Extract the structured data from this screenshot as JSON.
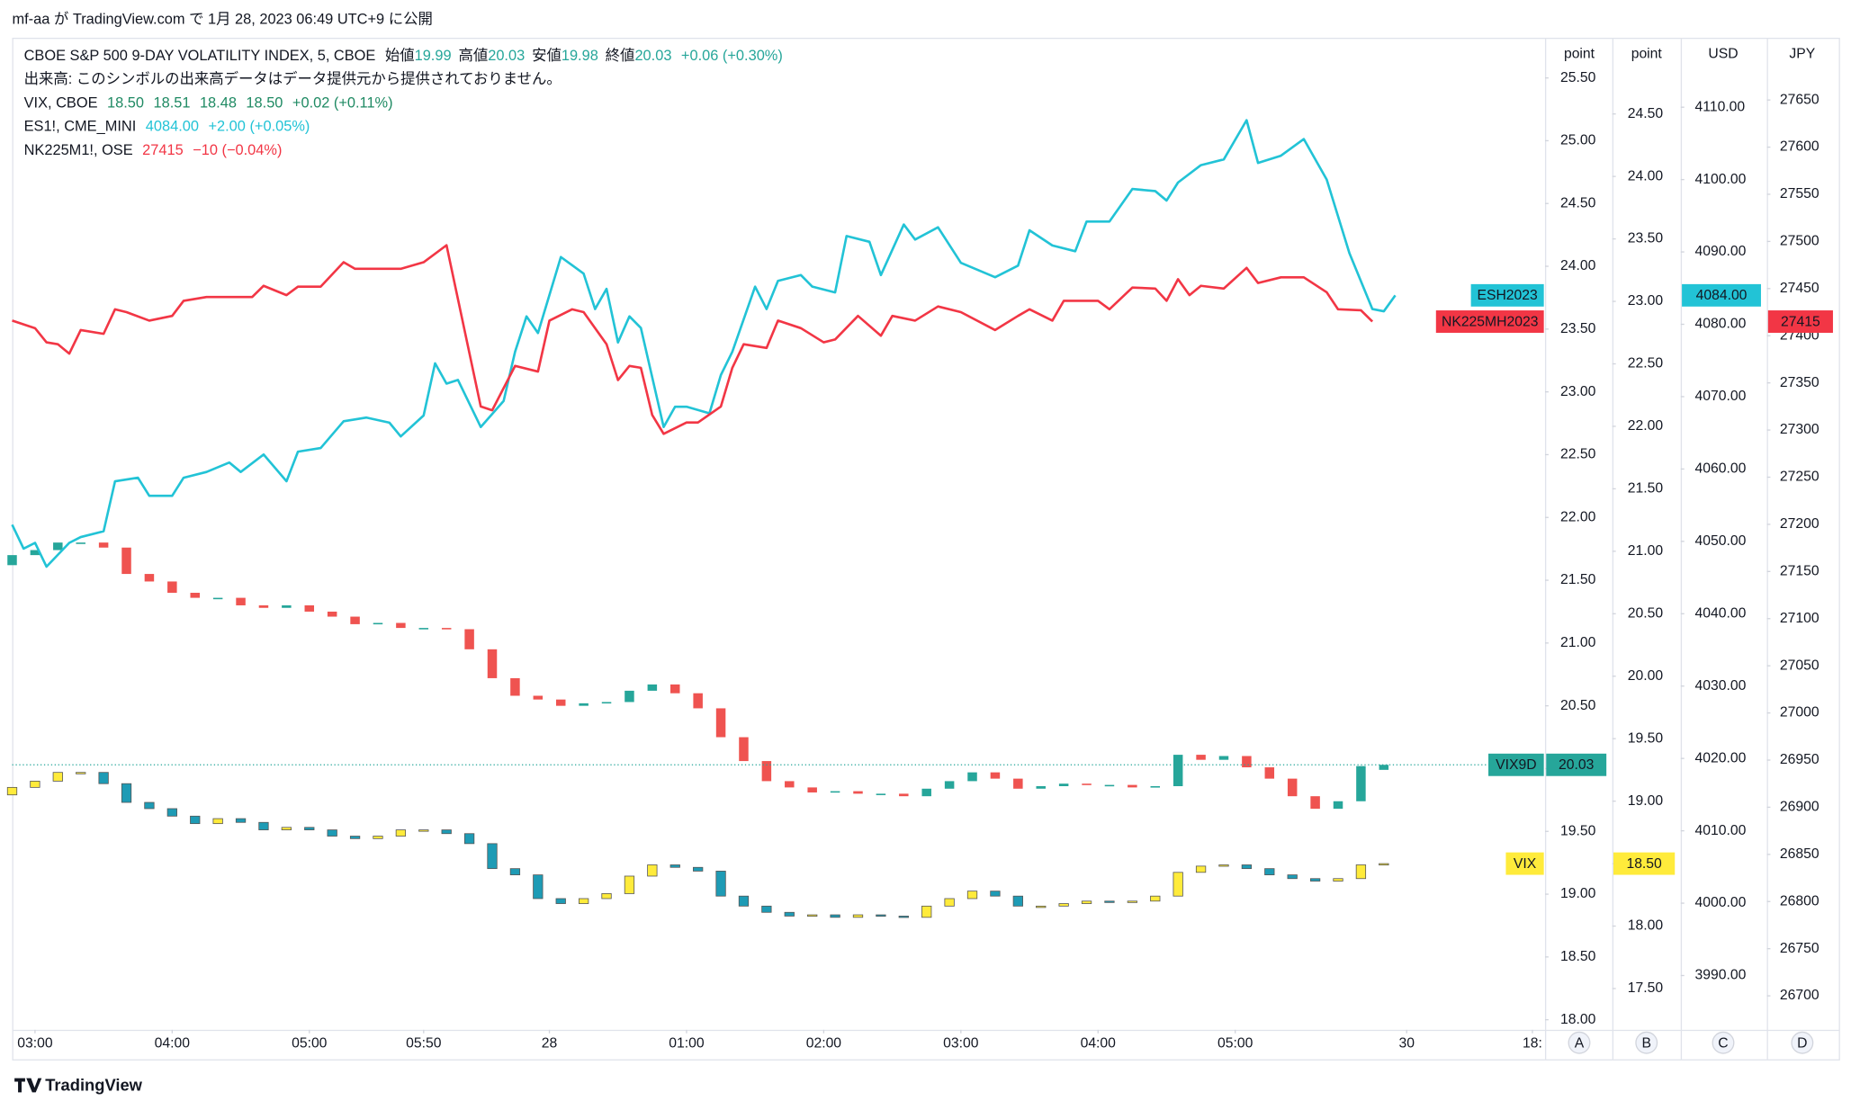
{
  "caption": "mf-aa が TradingView.com で 1月 28, 2023 06:49 UTC+9 に公開",
  "footer": "TradingView",
  "chart_data": {
    "type": "candlestick",
    "legend": [
      {
        "name": "CBOE S&P 500 9-DAY VOLATILITY INDEX, 5, CBOE",
        "labels": [
          "始値",
          "高値",
          "安値",
          "終値"
        ],
        "values": [
          "19.99",
          "20.03",
          "19.98",
          "20.03"
        ],
        "change": "+0.06 (+0.30%)",
        "color": "#26a69a"
      },
      {
        "name": "出来高: このシンボルの出来高データはデータ提供元から提供されておりません。"
      },
      {
        "name": "VIX, CBOE",
        "values": [
          "18.50",
          "18.51",
          "18.48",
          "18.50"
        ],
        "change": "+0.02 (+0.11%)",
        "color": "#1f8a63"
      },
      {
        "name": "ES1!, CME_MINI",
        "values": [
          "4084.00"
        ],
        "change": "+2.00 (+0.05%)",
        "color": "#22c3d6"
      },
      {
        "name": "NK225M1!, OSE",
        "values": [
          "27415"
        ],
        "change": "−10 (−0.04%)",
        "color": "#f23645"
      }
    ],
    "axis_units": [
      "point",
      "point",
      "USD",
      "JPY"
    ],
    "axis_letters": [
      "A",
      "B",
      "C",
      "D"
    ],
    "xlim": [
      0,
      134
    ],
    "xticks": [
      {
        "value": 2,
        "label": "03:00"
      },
      {
        "value": 14,
        "label": "04:00"
      },
      {
        "value": 26,
        "label": "05:00"
      },
      {
        "value": 36,
        "label": "05:50"
      },
      {
        "value": 47,
        "label": "28"
      },
      {
        "value": 59,
        "label": "01:00"
      },
      {
        "value": 71,
        "label": "02:00"
      },
      {
        "value": 83,
        "label": "03:00"
      },
      {
        "value": 95,
        "label": "04:00"
      },
      {
        "value": 107,
        "label": "05:00"
      },
      {
        "value": 122,
        "label": "30"
      },
      {
        "value": 133,
        "label": "18:"
      }
    ],
    "ylim": [
      17.92,
      25.82
    ],
    "yticks": [
      {
        "value": 18,
        "label": "18.00"
      },
      {
        "value": 18.5,
        "label": "18.50"
      },
      {
        "value": 19,
        "label": "19.00"
      },
      {
        "value": 19.5,
        "label": "19.50"
      },
      {
        "value": 20,
        "label": "20.00"
      },
      {
        "value": 20.5,
        "label": "20.50"
      },
      {
        "value": 21,
        "label": "21.00"
      },
      {
        "value": 21.5,
        "label": "21.50"
      },
      {
        "value": 22,
        "label": "22.00"
      },
      {
        "value": 22.5,
        "label": "22.50"
      },
      {
        "value": 23,
        "label": "23.00"
      },
      {
        "value": 23.5,
        "label": "23.50"
      },
      {
        "value": 24,
        "label": "24.00"
      },
      {
        "value": 24.5,
        "label": "24.50"
      },
      {
        "value": 25,
        "label": "25.00"
      },
      {
        "value": 25.5,
        "label": "25.50"
      }
    ],
    "y2lim": [
      17.17,
      25.11
    ],
    "y2ticks": [
      {
        "value": 17.5,
        "label": "17.50"
      },
      {
        "value": 18,
        "label": "18.00"
      },
      {
        "value": 18.5,
        "label": "18.50"
      },
      {
        "value": 19,
        "label": "19.00"
      },
      {
        "value": 19.5,
        "label": "19.50"
      },
      {
        "value": 20,
        "label": "20.00"
      },
      {
        "value": 20.5,
        "label": "20.50"
      },
      {
        "value": 21,
        "label": "21.00"
      },
      {
        "value": 21.5,
        "label": "21.50"
      },
      {
        "value": 22,
        "label": "22.00"
      },
      {
        "value": 22.5,
        "label": "22.50"
      },
      {
        "value": 23,
        "label": "23.00"
      },
      {
        "value": 23.5,
        "label": "23.50"
      },
      {
        "value": 24,
        "label": "24.00"
      },
      {
        "value": 24.5,
        "label": "24.50"
      }
    ],
    "y3lim": [
      3982.5,
      4119.6
    ],
    "y3ticks": [
      {
        "value": 3990,
        "label": "3990.00"
      },
      {
        "value": 4000,
        "label": "4000.00"
      },
      {
        "value": 4010,
        "label": "4010.00"
      },
      {
        "value": 4020,
        "label": "4020.00"
      },
      {
        "value": 4030,
        "label": "4030.00"
      },
      {
        "value": 4040,
        "label": "4040.00"
      },
      {
        "value": 4050,
        "label": "4050.00"
      },
      {
        "value": 4060,
        "label": "4060.00"
      },
      {
        "value": 4070,
        "label": "4070.00"
      },
      {
        "value": 4080,
        "label": "4080.00"
      },
      {
        "value": 4090,
        "label": "4090.00"
      },
      {
        "value": 4100,
        "label": "4100.00"
      },
      {
        "value": 4110,
        "label": "4110.00"
      }
    ],
    "y4lim": [
      26664,
      27716
    ],
    "y4ticks": [
      26700,
      26750,
      26800,
      26850,
      26900,
      26950,
      27000,
      27050,
      27100,
      27150,
      27200,
      27250,
      27300,
      27350,
      27400,
      27450,
      27500,
      27550,
      27600,
      27650
    ],
    "series": [
      {
        "name": "VIX9D",
        "type": "candlestick",
        "axis": "y",
        "up_color": "#26a69a",
        "down_color": "#ef5350",
        "last_label": "20.03",
        "x": [
          0,
          2,
          4,
          6,
          8,
          10,
          12,
          14,
          16,
          18,
          20,
          22,
          24,
          26,
          28,
          30,
          32,
          34,
          36,
          38,
          40,
          42,
          44,
          46,
          48,
          50,
          52,
          54,
          56,
          58,
          60,
          62,
          64,
          66,
          68,
          70,
          72,
          74,
          76,
          78,
          80,
          82,
          84,
          86,
          88,
          90,
          92,
          94,
          96,
          98,
          100,
          102,
          104,
          106,
          108,
          110,
          112,
          114,
          116,
          118,
          120
        ],
        "open": [
          21.62,
          21.7,
          21.74,
          21.8,
          21.8,
          21.76,
          21.55,
          21.49,
          21.4,
          21.36,
          21.36,
          21.3,
          21.28,
          21.3,
          21.25,
          21.21,
          21.15,
          21.16,
          21.12,
          21.12,
          21.11,
          20.95,
          20.72,
          20.58,
          20.55,
          20.5,
          20.52,
          20.53,
          20.62,
          20.67,
          20.6,
          20.48,
          20.25,
          20.06,
          19.9,
          19.85,
          19.81,
          19.82,
          19.8,
          19.8,
          19.78,
          19.84,
          19.9,
          19.97,
          19.92,
          19.84,
          19.86,
          19.88,
          19.87,
          19.87,
          19.85,
          19.86,
          20.11,
          20.07,
          20.1,
          20.01,
          19.92,
          19.78,
          19.68,
          19.74,
          19.99
        ],
        "close": [
          21.7,
          21.74,
          21.8,
          21.8,
          21.76,
          21.55,
          21.49,
          21.4,
          21.36,
          21.36,
          21.3,
          21.28,
          21.3,
          21.25,
          21.21,
          21.15,
          21.16,
          21.12,
          21.12,
          21.11,
          20.95,
          20.72,
          20.58,
          20.55,
          20.5,
          20.52,
          20.53,
          20.62,
          20.67,
          20.6,
          20.48,
          20.25,
          20.06,
          19.9,
          19.85,
          19.81,
          19.82,
          19.8,
          19.8,
          19.78,
          19.84,
          19.9,
          19.97,
          19.92,
          19.84,
          19.86,
          19.88,
          19.87,
          19.87,
          19.85,
          19.86,
          20.11,
          20.07,
          20.1,
          20.01,
          19.92,
          19.78,
          19.68,
          19.74,
          20.02,
          20.03
        ]
      },
      {
        "name": "VIX",
        "type": "candlestick",
        "axis": "y2",
        "up_color": "#ffeb3b",
        "down_color": "#1e9bb5",
        "outline": "#555555",
        "last_label": "18.50",
        "x": [
          0,
          2,
          4,
          6,
          8,
          10,
          12,
          14,
          16,
          18,
          20,
          22,
          24,
          26,
          28,
          30,
          32,
          34,
          36,
          38,
          40,
          42,
          44,
          46,
          48,
          50,
          52,
          54,
          56,
          58,
          60,
          62,
          64,
          66,
          68,
          70,
          72,
          74,
          76,
          78,
          80,
          82,
          84,
          86,
          88,
          90,
          92,
          94,
          96,
          98,
          100,
          102,
          104,
          106,
          108,
          110,
          112,
          114,
          116,
          118,
          120
        ],
        "open": [
          19.05,
          19.11,
          19.16,
          19.23,
          19.23,
          19.14,
          18.99,
          18.94,
          18.88,
          18.82,
          18.86,
          18.83,
          18.77,
          18.79,
          18.77,
          18.72,
          18.7,
          18.72,
          18.77,
          18.77,
          18.74,
          18.66,
          18.46,
          18.41,
          18.22,
          18.18,
          18.22,
          18.26,
          18.4,
          18.49,
          18.47,
          18.44,
          18.24,
          18.16,
          18.11,
          18.08,
          18.09,
          18.07,
          18.09,
          18.08,
          18.07,
          18.16,
          18.22,
          18.28,
          18.24,
          18.16,
          18.16,
          18.18,
          18.2,
          18.19,
          18.2,
          18.24,
          18.43,
          18.48,
          18.49,
          18.46,
          18.41,
          18.38,
          18.36,
          18.38,
          18.5
        ],
        "close": [
          19.11,
          19.16,
          19.23,
          19.23,
          19.14,
          18.99,
          18.94,
          18.88,
          18.82,
          18.86,
          18.83,
          18.77,
          18.79,
          18.77,
          18.72,
          18.7,
          18.72,
          18.77,
          18.77,
          18.74,
          18.66,
          18.46,
          18.41,
          18.22,
          18.18,
          18.22,
          18.26,
          18.4,
          18.49,
          18.47,
          18.44,
          18.24,
          18.16,
          18.11,
          18.08,
          18.09,
          18.07,
          18.09,
          18.08,
          18.07,
          18.16,
          18.22,
          18.28,
          18.24,
          18.16,
          18.16,
          18.18,
          18.2,
          18.19,
          18.2,
          18.24,
          18.43,
          18.48,
          18.49,
          18.46,
          18.41,
          18.38,
          18.36,
          18.38,
          18.49,
          18.5
        ]
      },
      {
        "name": "ESH2023",
        "type": "line",
        "axis": "y3",
        "color": "#22c3d6",
        "last_label": "4084.00",
        "x": [
          0,
          1,
          2,
          3,
          5,
          6,
          8,
          9,
          11,
          12,
          14,
          15,
          17,
          19,
          20,
          22,
          24,
          25,
          27,
          29,
          31,
          33,
          34,
          36,
          37,
          38,
          39,
          41,
          43,
          44,
          45,
          46,
          48,
          50,
          51,
          52,
          53,
          54,
          55,
          57,
          58,
          59,
          61,
          62,
          63,
          65,
          66,
          67,
          69,
          70,
          72,
          73,
          75,
          76,
          78,
          79,
          81,
          83,
          86,
          88,
          89,
          91,
          93,
          94,
          96,
          98,
          100,
          101,
          102,
          104,
          106,
          108,
          109,
          111,
          113,
          115,
          117,
          119,
          120,
          121
        ],
        "values": [
          4052.3,
          4049.0,
          4049.8,
          4046.5,
          4049.8,
          4050.6,
          4051.4,
          4058.3,
          4058.8,
          4056.3,
          4056.3,
          4058.8,
          4059.6,
          4060.9,
          4059.6,
          4062.0,
          4058.3,
          4062.4,
          4062.9,
          4066.6,
          4067.1,
          4066.4,
          4064.5,
          4067.4,
          4074.6,
          4071.8,
          4072.3,
          4065.8,
          4069.4,
          4076.2,
          4081.1,
          4078.8,
          4089.3,
          4087.0,
          4082.1,
          4084.9,
          4077.5,
          4081.1,
          4079.5,
          4065.8,
          4068.6,
          4068.6,
          4067.7,
          4073.0,
          4076.2,
          4085.2,
          4082.1,
          4086.0,
          4086.8,
          4085.2,
          4084.4,
          4092.2,
          4091.4,
          4086.8,
          4093.8,
          4091.7,
          4093.4,
          4088.5,
          4086.5,
          4088.1,
          4093.0,
          4090.9,
          4090.1,
          4094.2,
          4094.2,
          4098.7,
          4098.4,
          4097.1,
          4099.6,
          4102.0,
          4102.8,
          4108.2,
          4102.3,
          4103.3,
          4105.6,
          4100.0,
          4089.8,
          4082.1,
          4081.8,
          4084.0
        ]
      },
      {
        "name": "NK225MH2023",
        "type": "line",
        "axis": "y4",
        "color": "#f23645",
        "last_label": "27415",
        "x": [
          0,
          2,
          3,
          4,
          5,
          6,
          8,
          9,
          10,
          12,
          14,
          15,
          17,
          19,
          21,
          22,
          24,
          25,
          27,
          29,
          30,
          32,
          34,
          36,
          38,
          41,
          42,
          44,
          46,
          47,
          49,
          50,
          52,
          53,
          54,
          55,
          56,
          57,
          59,
          60,
          62,
          63,
          64,
          66,
          67,
          69,
          71,
          72,
          74,
          76,
          77,
          79,
          81,
          83,
          86,
          88,
          89,
          91,
          92,
          95,
          96,
          98,
          100,
          101,
          102,
          103,
          104,
          106,
          108,
          109,
          111,
          113,
          115,
          116,
          118,
          119
        ],
        "values": [
          27416,
          27408,
          27393,
          27391,
          27381,
          27406,
          27402,
          27428,
          27425,
          27416,
          27421,
          27437,
          27441,
          27441,
          27441,
          27453,
          27443,
          27452,
          27452,
          27478,
          27471,
          27471,
          27471,
          27478,
          27496,
          27325,
          27321,
          27368,
          27362,
          27416,
          27428,
          27425,
          27391,
          27353,
          27368,
          27366,
          27316,
          27296,
          27308,
          27308,
          27325,
          27366,
          27391,
          27387,
          27416,
          27408,
          27393,
          27396,
          27421,
          27400,
          27421,
          27416,
          27431,
          27425,
          27406,
          27421,
          27428,
          27416,
          27437,
          27437,
          27428,
          27451,
          27450,
          27437,
          27460,
          27443,
          27453,
          27450,
          27472,
          27456,
          27462,
          27462,
          27446,
          27428,
          27427,
          27415
        ]
      }
    ]
  }
}
